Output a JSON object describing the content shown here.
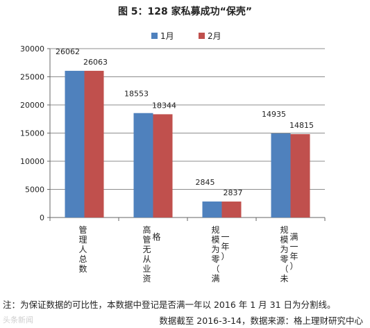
{
  "chart_data": {
    "type": "bar",
    "title": "图 5：128 家私募成功“保壳”",
    "categories": [
      [
        "管",
        "理",
        "人",
        "总",
        "数"
      ],
      [
        "高",
        "管",
        "无",
        "从",
        "业",
        "资",
        "格"
      ],
      [
        "规",
        "模",
        "为",
        "零",
        "（",
        "满",
        "一",
        "年",
        "）"
      ],
      [
        "规",
        "模",
        "为",
        "零",
        "（",
        "未",
        "满",
        "一",
        "年",
        "）"
      ]
    ],
    "series": [
      {
        "name": "1月",
        "color": "#4F81BD",
        "values": [
          26062,
          18553,
          2845,
          14935
        ]
      },
      {
        "name": "2月",
        "color": "#C0504D",
        "values": [
          26063,
          18344,
          2837,
          14815
        ]
      }
    ],
    "ylim": [
      0,
      30000
    ],
    "yticks": [
      "0",
      "5000",
      "10000",
      "15000",
      "20000",
      "25000",
      "30000"
    ],
    "legend": "top",
    "grid": true
  },
  "footer": {
    "note": "注：为保证数据的可比性，本数据中登记是否满一年以 2016 年 1 月 31 日为分割线。",
    "source": "数据截至 2016-3-14，数据来源：格上理财研究中心",
    "watermark": "头条新闻"
  }
}
